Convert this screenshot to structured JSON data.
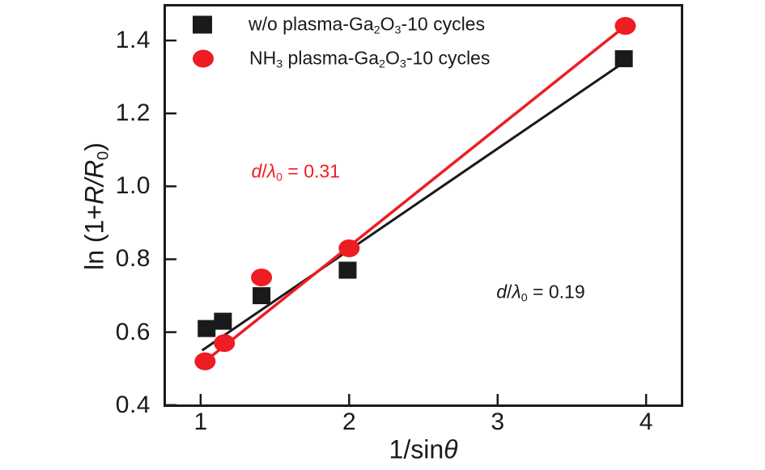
{
  "figure": {
    "background": "#ffffff",
    "frame_color": "#1a1a1a"
  },
  "chart_data": {
    "type": "scatter",
    "title": "",
    "xlabel": "1/sinθ",
    "ylabel": "ln (1+R/R0)",
    "xlim": [
      0.75,
      4.25
    ],
    "ylim": [
      0.395,
      1.5
    ],
    "xticks": [
      1,
      2,
      3,
      4
    ],
    "xtick_labels": [
      "1",
      "2",
      "3",
      "4"
    ],
    "yticks": [
      0.4,
      0.6,
      0.8,
      1.0,
      1.2,
      1.4
    ],
    "ytick_labels": [
      "0.4",
      "0.6",
      "0.8",
      "1.0",
      "1.2",
      "1.4"
    ],
    "grid": false,
    "legend_position": "top-left-inside",
    "series": [
      {
        "name": "w/o plasma-Ga2O3-10 cycles",
        "marker": "square",
        "color": "#1a1a1a",
        "points": [
          [
            1.04,
            0.61
          ],
          [
            1.15,
            0.63
          ],
          [
            1.41,
            0.7
          ],
          [
            1.99,
            0.77
          ],
          [
            3.85,
            1.35
          ]
        ],
        "fit_line": {
          "from": [
            1.01,
            0.55
          ],
          "to": [
            3.85,
            1.34
          ]
        },
        "slope_label": "d/λ0 = 0.19"
      },
      {
        "name": "NH3 plasma-Ga2O3-10 cycles",
        "marker": "circle",
        "color": "#ee1c23",
        "points": [
          [
            1.03,
            0.52
          ],
          [
            1.16,
            0.57
          ],
          [
            1.41,
            0.75
          ],
          [
            2.0,
            0.83
          ],
          [
            3.86,
            1.44
          ]
        ],
        "fit_line": {
          "from": [
            1.03,
            0.52
          ],
          "to": [
            3.86,
            1.44
          ]
        },
        "slope_label": "d/λ0 = 0.31"
      }
    ],
    "annotations": [
      {
        "text": "d/λ0 = 0.31",
        "color": "#ee1c23",
        "x": 1.64,
        "y": 1.04
      },
      {
        "text": "d/λ0 = 0.19",
        "color": "#1a1a1a",
        "x": 3.29,
        "y": 0.71
      }
    ]
  },
  "rich_text": {
    "ylabel_parts": [
      {
        "t": "ln (1+"
      },
      {
        "t": "R/R",
        "i": 1
      },
      {
        "t": "0",
        "sub": 1
      },
      {
        "t": ")"
      }
    ],
    "xlabel_parts": [
      {
        "t": "1/sin"
      },
      {
        "t": "θ",
        "i": 1
      }
    ],
    "legend_parts": [
      [
        {
          "t": "w/o plasma-Ga"
        },
        {
          "t": "2",
          "sub": 1
        },
        {
          "t": "O"
        },
        {
          "t": "3",
          "sub": 1
        },
        {
          "t": "-10 cycles"
        }
      ],
      [
        {
          "t": "NH"
        },
        {
          "t": "3",
          "sub": 1
        },
        {
          "t": " plasma-Ga"
        },
        {
          "t": "2",
          "sub": 1
        },
        {
          "t": "O"
        },
        {
          "t": "3",
          "sub": 1
        },
        {
          "t": "-10 cycles"
        }
      ]
    ],
    "annotation_parts": [
      [
        {
          "t": "d",
          "i": 1
        },
        {
          "t": "/"
        },
        {
          "t": "λ",
          "i": 1
        },
        {
          "t": "0",
          "sub": 1
        },
        {
          "t": " = 0.31"
        }
      ],
      [
        {
          "t": "d",
          "i": 1
        },
        {
          "t": "/"
        },
        {
          "t": "λ",
          "i": 1
        },
        {
          "t": "0",
          "sub": 1
        },
        {
          "t": " = 0.19"
        }
      ]
    ]
  }
}
